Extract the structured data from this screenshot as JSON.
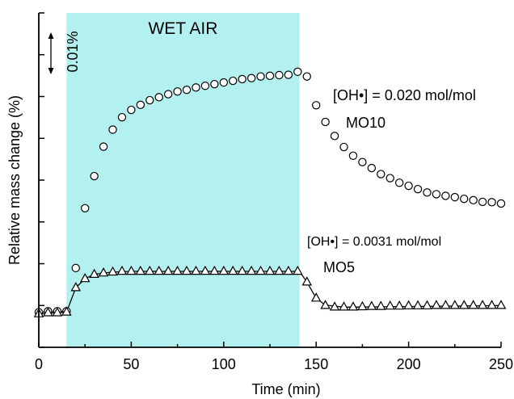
{
  "chart_data": {
    "type": "scatter",
    "title": "",
    "xlabel": "Time (min)",
    "ylabel": "Relative mass change (%)",
    "xlim": [
      0,
      250
    ],
    "ylim": [
      0,
      1
    ],
    "x_ticks": [
      0,
      50,
      100,
      150,
      200,
      250
    ],
    "x_tick_labels": [
      "0",
      "50",
      "100",
      "150",
      "200",
      "250"
    ],
    "y_tick_values": [
      0.0,
      0.125,
      0.25,
      0.375,
      0.5,
      0.625,
      0.75,
      0.875,
      1.0
    ],
    "grid": false,
    "shaded_region": {
      "label": "WET AIR",
      "x_start": 15,
      "x_end": 141,
      "color": "#b3f0f0"
    },
    "scale_bar": {
      "label": "0.01%"
    },
    "annotations": [
      {
        "id": "mo10_conc",
        "text": "[OH•] = 0.020 mol/mol"
      },
      {
        "id": "mo10_name",
        "text": "MO10"
      },
      {
        "id": "mo5_conc",
        "text": "[OH•] = 0.0031 mol/mol"
      },
      {
        "id": "mo5_name",
        "text": "MO5"
      }
    ],
    "series": [
      {
        "name": "MO10",
        "marker": "circle",
        "points": [
          [
            0,
            0.105
          ],
          [
            5,
            0.108
          ],
          [
            10,
            0.108
          ],
          [
            15,
            0.108
          ],
          [
            20,
            0.237
          ],
          [
            25,
            0.416
          ],
          [
            30,
            0.512
          ],
          [
            35,
            0.6
          ],
          [
            40,
            0.651
          ],
          [
            45,
            0.688
          ],
          [
            50,
            0.71
          ],
          [
            55,
            0.725
          ],
          [
            60,
            0.739
          ],
          [
            65,
            0.748
          ],
          [
            70,
            0.757
          ],
          [
            75,
            0.765
          ],
          [
            80,
            0.77
          ],
          [
            85,
            0.777
          ],
          [
            90,
            0.782
          ],
          [
            95,
            0.787
          ],
          [
            100,
            0.792
          ],
          [
            105,
            0.797
          ],
          [
            110,
            0.802
          ],
          [
            115,
            0.805
          ],
          [
            120,
            0.81
          ],
          [
            125,
            0.812
          ],
          [
            130,
            0.814
          ],
          [
            135,
            0.815
          ],
          [
            140,
            0.824
          ],
          [
            145,
            0.81
          ],
          [
            150,
            0.724
          ],
          [
            155,
            0.674
          ],
          [
            160,
            0.632
          ],
          [
            165,
            0.599
          ],
          [
            170,
            0.573
          ],
          [
            175,
            0.554
          ],
          [
            180,
            0.536
          ],
          [
            185,
            0.518
          ],
          [
            190,
            0.506
          ],
          [
            195,
            0.492
          ],
          [
            200,
            0.483
          ],
          [
            205,
            0.473
          ],
          [
            210,
            0.463
          ],
          [
            215,
            0.458
          ],
          [
            220,
            0.453
          ],
          [
            225,
            0.449
          ],
          [
            230,
            0.444
          ],
          [
            235,
            0.44
          ],
          [
            240,
            0.435
          ],
          [
            245,
            0.434
          ],
          [
            250,
            0.43
          ]
        ]
      },
      {
        "name": "MO5",
        "marker": "triangle",
        "points": [
          [
            0,
            0.1
          ],
          [
            5,
            0.103
          ],
          [
            10,
            0.103
          ],
          [
            15,
            0.105
          ],
          [
            20,
            0.178
          ],
          [
            25,
            0.205
          ],
          [
            30,
            0.218
          ],
          [
            35,
            0.222
          ],
          [
            40,
            0.225
          ],
          [
            45,
            0.227
          ],
          [
            50,
            0.227
          ],
          [
            55,
            0.227
          ],
          [
            60,
            0.227
          ],
          [
            65,
            0.227
          ],
          [
            70,
            0.227
          ],
          [
            75,
            0.227
          ],
          [
            80,
            0.227
          ],
          [
            85,
            0.227
          ],
          [
            90,
            0.227
          ],
          [
            95,
            0.227
          ],
          [
            100,
            0.227
          ],
          [
            105,
            0.227
          ],
          [
            110,
            0.227
          ],
          [
            115,
            0.227
          ],
          [
            120,
            0.227
          ],
          [
            125,
            0.227
          ],
          [
            130,
            0.227
          ],
          [
            135,
            0.227
          ],
          [
            140,
            0.227
          ],
          [
            145,
            0.195
          ],
          [
            150,
            0.147
          ],
          [
            155,
            0.125
          ],
          [
            160,
            0.12
          ],
          [
            165,
            0.12
          ],
          [
            170,
            0.12
          ],
          [
            175,
            0.121
          ],
          [
            180,
            0.122
          ],
          [
            185,
            0.122
          ],
          [
            190,
            0.123
          ],
          [
            195,
            0.123
          ],
          [
            200,
            0.124
          ],
          [
            205,
            0.124
          ],
          [
            210,
            0.124
          ],
          [
            215,
            0.125
          ],
          [
            220,
            0.125
          ],
          [
            225,
            0.125
          ],
          [
            230,
            0.125
          ],
          [
            235,
            0.125
          ],
          [
            240,
            0.125
          ],
          [
            245,
            0.125
          ],
          [
            250,
            0.125
          ]
        ]
      }
    ],
    "fit_lines": [
      {
        "name": "MO10_fit",
        "points": [
          [
            0,
            0.105
          ],
          [
            15,
            0.108
          ]
        ]
      },
      {
        "name": "MO5_fit",
        "points": [
          [
            0,
            0.1
          ],
          [
            15,
            0.105
          ],
          [
            20,
            0.178
          ],
          [
            25,
            0.205
          ],
          [
            30,
            0.218
          ],
          [
            35,
            0.222
          ],
          [
            40,
            0.225
          ],
          [
            50,
            0.227
          ],
          [
            141,
            0.227
          ],
          [
            145,
            0.195
          ],
          [
            150,
            0.147
          ],
          [
            155,
            0.126
          ],
          [
            165,
            0.12
          ],
          [
            200,
            0.122
          ],
          [
            250,
            0.125
          ]
        ]
      }
    ]
  }
}
